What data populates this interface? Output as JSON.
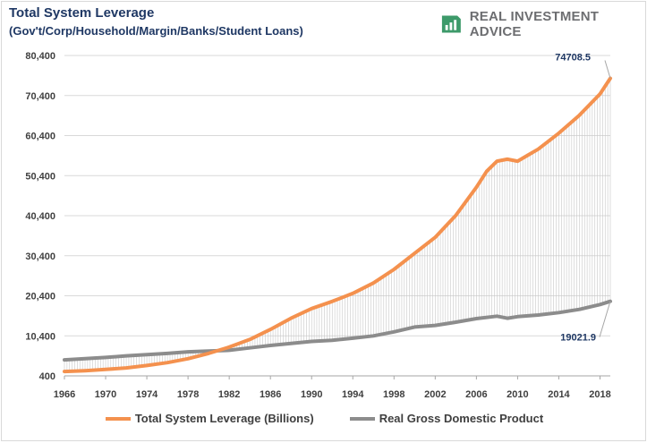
{
  "header": {
    "title": "Total System Leverage",
    "subtitle": "(Gov't/Corp/Household/Margin/Banks/Student Loans)"
  },
  "brand": {
    "name": "REAL INVESTMENT ADVICE",
    "logo_icon": "chart-bars-icon",
    "logo_color": "#3d9a6a"
  },
  "chart_data": {
    "type": "line",
    "title": "Total System Leverage",
    "subtitle": "(Gov't/Corp/Household/Margin/Banks/Student Loans)",
    "xlabel": "",
    "ylabel": "",
    "xlim": [
      1966,
      2019
    ],
    "ylim": [
      400,
      80400
    ],
    "y_ticks": [
      "400",
      "10,400",
      "20,400",
      "30,400",
      "40,400",
      "50,400",
      "60,400",
      "70,400",
      "80,400"
    ],
    "x_ticks": [
      "1966",
      "1970",
      "1974",
      "1978",
      "1982",
      "1986",
      "1990",
      "1994",
      "1998",
      "2002",
      "2006",
      "2010",
      "2014",
      "2018"
    ],
    "grid": "horizontal",
    "legend_position": "bottom",
    "series": [
      {
        "name": "Total System Leverage (Billions)",
        "color": "#f4914e",
        "points": [
          [
            1966,
            1500
          ],
          [
            1968,
            1700
          ],
          [
            1970,
            2000
          ],
          [
            1972,
            2400
          ],
          [
            1974,
            3000
          ],
          [
            1976,
            3700
          ],
          [
            1978,
            4700
          ],
          [
            1980,
            6000
          ],
          [
            1982,
            7600
          ],
          [
            1984,
            9500
          ],
          [
            1986,
            12000
          ],
          [
            1988,
            14800
          ],
          [
            1990,
            17200
          ],
          [
            1992,
            19000
          ],
          [
            1994,
            21000
          ],
          [
            1996,
            23600
          ],
          [
            1998,
            27000
          ],
          [
            2000,
            31000
          ],
          [
            2002,
            35000
          ],
          [
            2004,
            40500
          ],
          [
            2006,
            47500
          ],
          [
            2007,
            51500
          ],
          [
            2008,
            54000
          ],
          [
            2009,
            54500
          ],
          [
            2010,
            54000
          ],
          [
            2011,
            55500
          ],
          [
            2012,
            57000
          ],
          [
            2014,
            61000
          ],
          [
            2016,
            65500
          ],
          [
            2018,
            70800
          ],
          [
            2019,
            74708.5
          ]
        ]
      },
      {
        "name": "Real Gross Domestic Product",
        "color": "#8c8c8c",
        "points": [
          [
            1966,
            4400
          ],
          [
            1968,
            4700
          ],
          [
            1970,
            5000
          ],
          [
            1972,
            5400
          ],
          [
            1974,
            5700
          ],
          [
            1976,
            6000
          ],
          [
            1978,
            6400
          ],
          [
            1980,
            6600
          ],
          [
            1982,
            6800
          ],
          [
            1984,
            7400
          ],
          [
            1986,
            8000
          ],
          [
            1988,
            8500
          ],
          [
            1990,
            9000
          ],
          [
            1992,
            9300
          ],
          [
            1994,
            9800
          ],
          [
            1996,
            10400
          ],
          [
            1998,
            11400
          ],
          [
            2000,
            12600
          ],
          [
            2002,
            13000
          ],
          [
            2004,
            13800
          ],
          [
            2006,
            14700
          ],
          [
            2008,
            15300
          ],
          [
            2009,
            14800
          ],
          [
            2010,
            15200
          ],
          [
            2012,
            15600
          ],
          [
            2014,
            16200
          ],
          [
            2016,
            17000
          ],
          [
            2018,
            18200
          ],
          [
            2019,
            19021.9
          ]
        ]
      }
    ],
    "annotations": [
      {
        "label": "74708.5",
        "series": 0
      },
      {
        "label": "19021.9",
        "series": 1
      }
    ]
  }
}
